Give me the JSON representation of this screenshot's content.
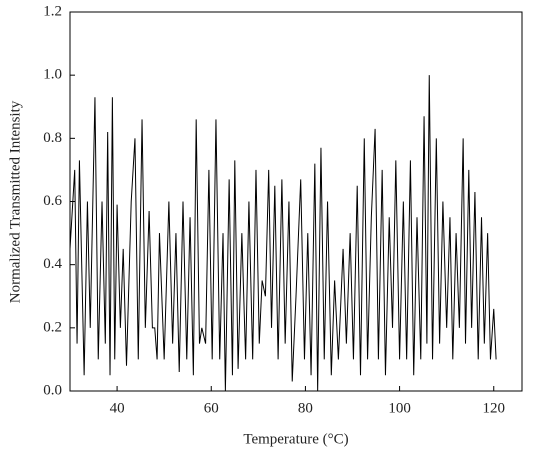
{
  "chart_data": {
    "type": "line",
    "x_label": "Temperature (°C)",
    "y_label": "Normalized Transmitted Intensity",
    "xlim": [
      30,
      126
    ],
    "xticks": [
      40,
      60,
      80,
      100,
      120
    ],
    "ylim": [
      0,
      1.2
    ],
    "yticks": [
      {
        "value": 0,
        "label": "0.0"
      },
      0.2,
      0.4,
      0.6,
      0.8,
      {
        "value": 1,
        "label": "1.0"
      },
      1.2
    ],
    "color": "#000000",
    "x": [
      30,
      31,
      31.5,
      32,
      33,
      33.7,
      34.3,
      35.3,
      36,
      36.8,
      37.5,
      38,
      38.5,
      39,
      39.5,
      40,
      40.7,
      41.3,
      42,
      43,
      43.8,
      44.5,
      45.3,
      46,
      46.8,
      47.5,
      48,
      48.5,
      49,
      50,
      51,
      51.8,
      52.5,
      53.2,
      54,
      54.8,
      55.5,
      56.2,
      56.8,
      57.5,
      58,
      58.8,
      59.5,
      60.2,
      61,
      61.8,
      62.5,
      63,
      63.8,
      64.5,
      65,
      65.7,
      66.5,
      67.3,
      68,
      68.8,
      69.5,
      70.2,
      70.8,
      71.5,
      72.2,
      72.8,
      73.5,
      74.2,
      75,
      75.7,
      76.5,
      77.2,
      78,
      79,
      79.8,
      80.5,
      81.2,
      82,
      82.6,
      83.3,
      84,
      84.7,
      85.5,
      86.2,
      87,
      88,
      88.7,
      89.5,
      90.2,
      91,
      91.7,
      92.5,
      93.2,
      94,
      94.8,
      95.5,
      96.3,
      97,
      97.8,
      98.5,
      99.2,
      100,
      100.8,
      101.5,
      102.3,
      103,
      103.7,
      104.5,
      105.2,
      105.8,
      106.3,
      107,
      107.8,
      108.5,
      109.2,
      110,
      110.7,
      111.3,
      112,
      112.7,
      113.5,
      114,
      114.7,
      115.3,
      116,
      116.7,
      117.4,
      118,
      118.7,
      119.3,
      120,
      120.5
    ],
    "values": [
      0.45,
      0.7,
      0.15,
      0.73,
      0.05,
      0.6,
      0.2,
      0.93,
      0.1,
      0.6,
      0.15,
      0.82,
      0.05,
      0.93,
      0.1,
      0.59,
      0.2,
      0.45,
      0.08,
      0.6,
      0.8,
      0.1,
      0.86,
      0.2,
      0.57,
      0.2,
      0.2,
      0.1,
      0.5,
      0.1,
      0.6,
      0.15,
      0.5,
      0.06,
      0.6,
      0.1,
      0.55,
      0.05,
      0.86,
      0.15,
      0.2,
      0.15,
      0.7,
      0.1,
      0.86,
      0.1,
      0.5,
      0.0,
      0.67,
      0.05,
      0.73,
      0.07,
      0.5,
      0.1,
      0.6,
      0.1,
      0.7,
      0.15,
      0.35,
      0.3,
      0.7,
      0.2,
      0.65,
      0.1,
      0.67,
      0.15,
      0.6,
      0.03,
      0.3,
      0.67,
      0.1,
      0.5,
      0.05,
      0.72,
      0.0,
      0.77,
      0.1,
      0.6,
      0.05,
      0.35,
      0.1,
      0.45,
      0.15,
      0.5,
      0.1,
      0.65,
      0.05,
      0.8,
      0.1,
      0.55,
      0.83,
      0.1,
      0.7,
      0.05,
      0.55,
      0.2,
      0.73,
      0.1,
      0.6,
      0.1,
      0.73,
      0.05,
      0.55,
      0.1,
      0.87,
      0.15,
      1.0,
      0.1,
      0.8,
      0.15,
      0.6,
      0.2,
      0.55,
      0.1,
      0.5,
      0.2,
      0.8,
      0.15,
      0.7,
      0.2,
      0.63,
      0.1,
      0.55,
      0.15,
      0.5,
      0.1,
      0.26,
      0.1
    ]
  }
}
